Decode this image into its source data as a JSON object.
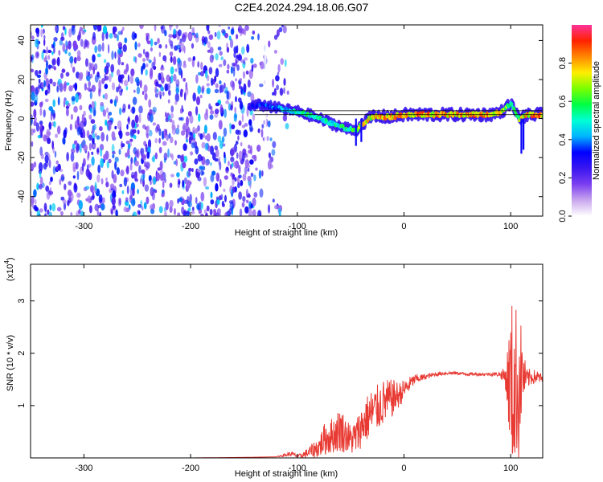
{
  "title": "C2E4.2024.294.18.06.G07",
  "chart_data": [
    {
      "type": "heatmap",
      "title": "C2E4.2024.294.18.06.G07",
      "xlabel": "Height of straight line (km)",
      "ylabel": "Frequency (Hz)",
      "xlim": [
        -350,
        130
      ],
      "ylim": [
        -50,
        48
      ],
      "xticks": [
        -300,
        -200,
        -100,
        0,
        100
      ],
      "yticks": [
        -40,
        -20,
        0,
        20,
        40
      ],
      "xticklabels": [
        "-300",
        "-200",
        "-100",
        "0",
        "100"
      ],
      "yticklabels": [
        "-40",
        "-20",
        "0",
        "20",
        "40"
      ],
      "grid": false,
      "colorbar": {
        "label": "Normalized spectral amplitude",
        "range": [
          0,
          1
        ],
        "ticks": [
          0.0,
          0.2,
          0.4,
          0.6,
          0.8
        ],
        "ticklabels": [
          "0.0",
          "0.2",
          "0.4",
          "0.6",
          "0.8"
        ],
        "colormap": [
          "#ffffff",
          "#c9a6ee",
          "#7b3ff0",
          "#3a16f0",
          "#0000ff",
          "#00b4ff",
          "#00ffd6",
          "#00ff44",
          "#7aff00",
          "#ffee00",
          "#ff8800",
          "#ff2200",
          "#ff3399"
        ]
      },
      "noise_region": {
        "x_start": -350,
        "x_end": -108,
        "note_free": true
      },
      "ridge": {
        "x": [
          -145,
          -135,
          -125,
          -115,
          -105,
          -95,
          -85,
          -75,
          -65,
          -55,
          -45,
          -40,
          -30,
          -20,
          -10,
          0,
          20,
          40,
          60,
          80,
          90,
          95,
          100,
          105,
          108,
          112,
          120,
          130
        ],
        "y": [
          6,
          7,
          6,
          5,
          4,
          3,
          1,
          -1,
          -3,
          -5,
          -6,
          -3,
          1,
          1,
          1,
          2,
          2,
          2,
          2,
          2,
          3,
          5,
          8,
          3,
          0,
          1,
          2,
          2
        ],
        "amplitude": [
          0.3,
          0.35,
          0.4,
          0.45,
          0.5,
          0.55,
          0.55,
          0.55,
          0.55,
          0.6,
          0.6,
          0.75,
          0.8,
          0.85,
          0.85,
          0.85,
          0.85,
          0.85,
          0.85,
          0.85,
          0.85,
          0.7,
          0.5,
          0.6,
          0.7,
          0.8,
          0.85,
          0.85
        ]
      },
      "reference_line_y": 2,
      "reference_line_y2": 4
    },
    {
      "type": "line",
      "xlabel": "Height of straight line (km)",
      "ylabel": "SNR (10 * v/v)",
      "scale_label": "(x10",
      "scale_exp": "4",
      "scale_close": ")",
      "xlim": [
        -350,
        130
      ],
      "ylim": [
        0,
        3.7
      ],
      "xticks": [
        -300,
        -200,
        -100,
        0,
        100
      ],
      "yticks": [
        1,
        2,
        3
      ],
      "xticklabels": [
        "-300",
        "-200",
        "-100",
        "0",
        "100"
      ],
      "yticklabels": [
        "1",
        "2",
        "3"
      ],
      "grid": false,
      "color": "#e83a33",
      "series": [
        {
          "x": [
            -350,
            -300,
            -250,
            -200,
            -150,
            -120,
            -110,
            -105,
            -100,
            -95,
            -90,
            -85,
            -80,
            -75,
            -70,
            -65,
            -60,
            -55,
            -50,
            -45,
            -40,
            -35,
            -30,
            -25,
            -20,
            -15,
            -10,
            -5,
            0,
            5,
            10,
            20,
            30,
            40,
            50,
            60,
            70,
            80,
            90,
            95,
            100,
            103,
            105,
            108,
            110,
            112,
            115,
            120,
            125,
            130
          ],
          "y": [
            0.0,
            0.0,
            0.0,
            0.0,
            0.01,
            0.02,
            0.06,
            0.08,
            0.03,
            0.05,
            0.1,
            0.15,
            0.2,
            0.35,
            0.4,
            0.45,
            0.55,
            0.45,
            0.35,
            0.4,
            0.6,
            0.75,
            0.85,
            0.95,
            1.05,
            1.1,
            1.15,
            1.2,
            1.3,
            1.4,
            1.5,
            1.55,
            1.6,
            1.62,
            1.62,
            1.6,
            1.6,
            1.6,
            1.6,
            1.55,
            1.4,
            1.2,
            1.0,
            1.5,
            1.6,
            1.55,
            1.5,
            1.55,
            1.55,
            1.5
          ],
          "spread": [
            0.0,
            0.0,
            0.0,
            0.0,
            0.0,
            0.0,
            0.04,
            0.04,
            0.03,
            0.05,
            0.1,
            0.15,
            0.2,
            0.3,
            0.35,
            0.35,
            0.45,
            0.35,
            0.3,
            0.35,
            0.4,
            0.45,
            0.5,
            0.45,
            0.45,
            0.4,
            0.35,
            0.25,
            0.2,
            0.15,
            0.1,
            0.05,
            0.04,
            0.03,
            0.03,
            0.03,
            0.03,
            0.03,
            0.05,
            0.2,
            1.4,
            2.2,
            2.0,
            1.5,
            0.9,
            0.5,
            0.2,
            0.15,
            0.12,
            0.1
          ]
        }
      ]
    }
  ]
}
